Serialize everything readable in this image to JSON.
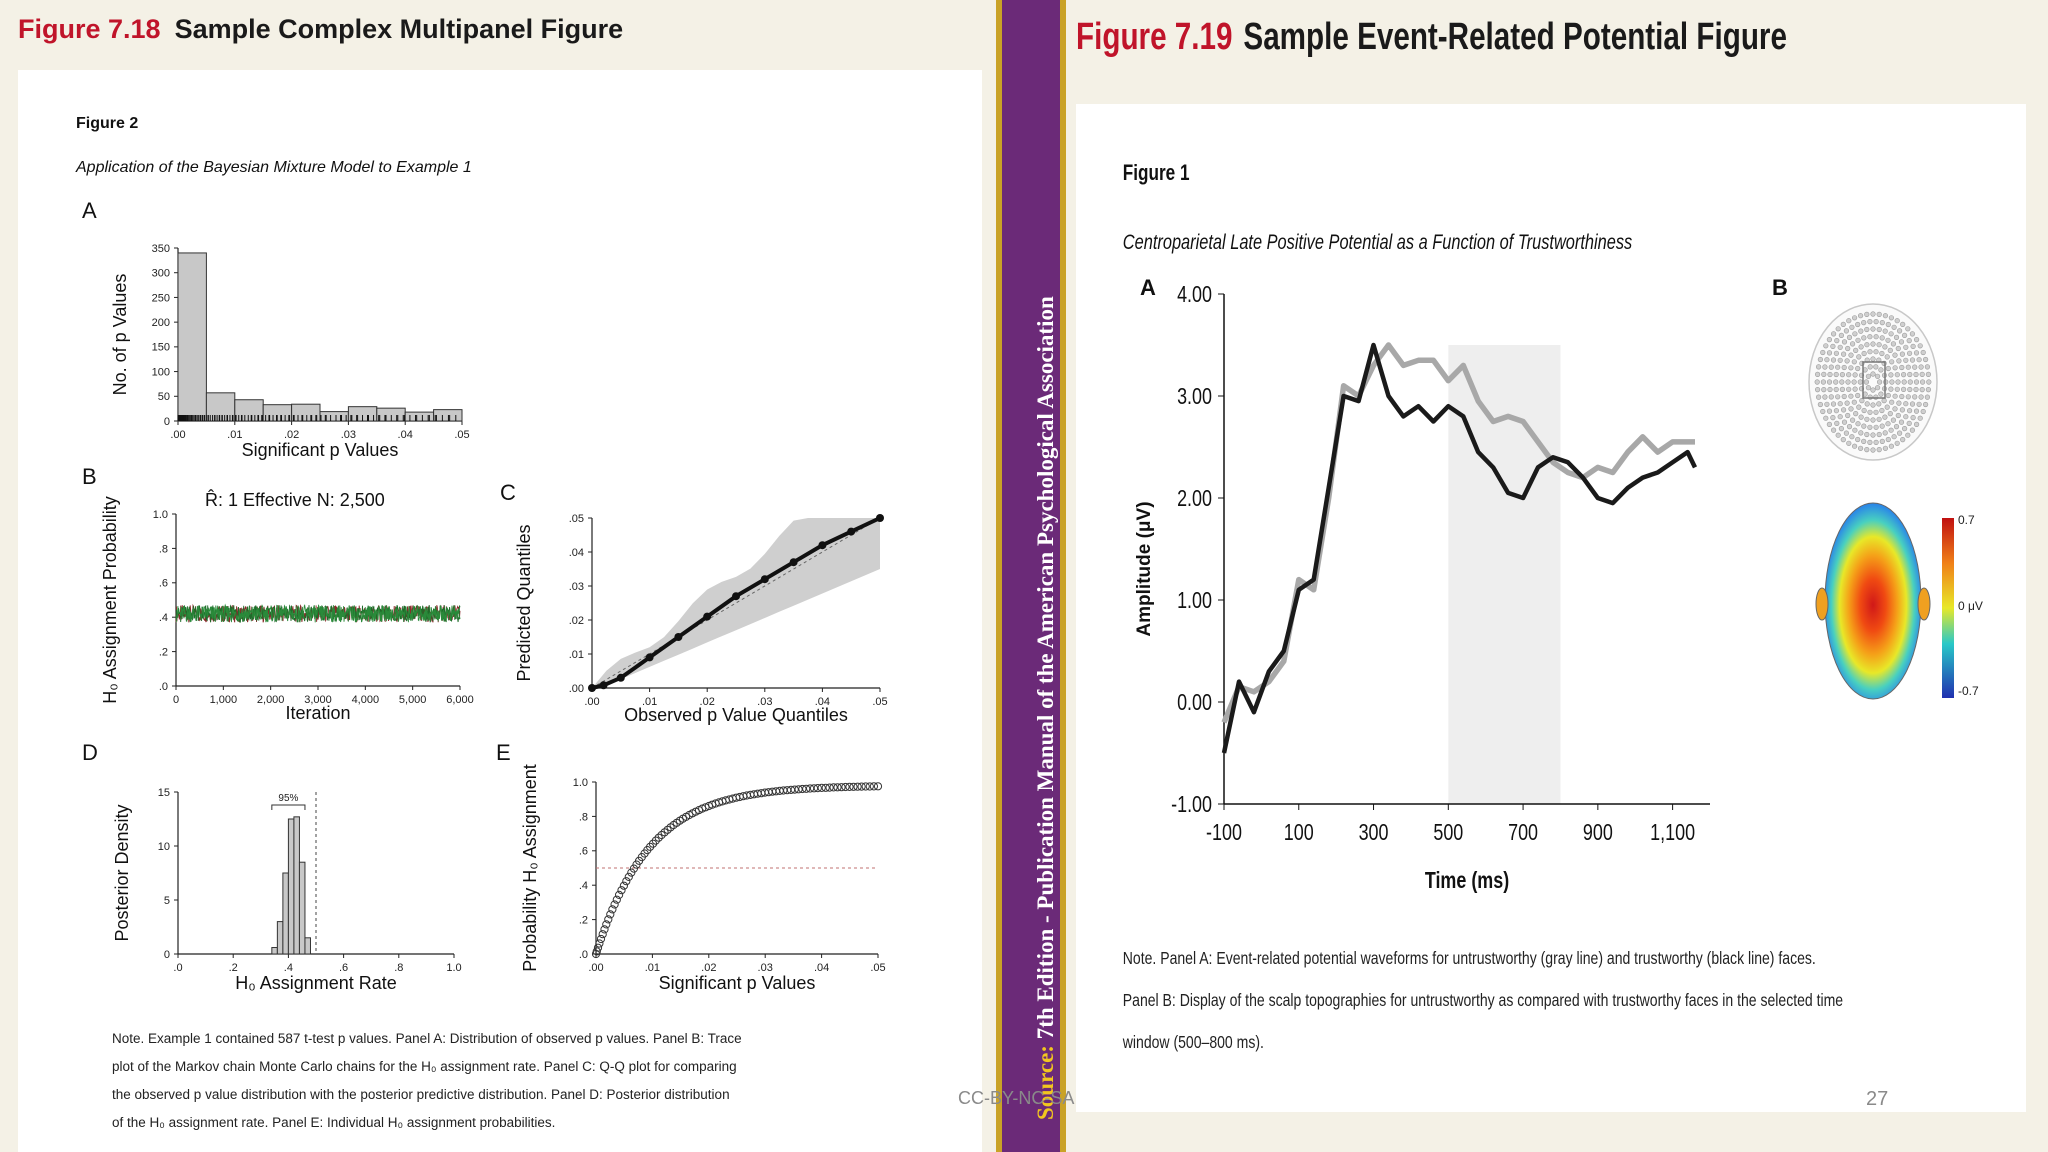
{
  "left_figure": {
    "label": "Figure 7.18",
    "title": "Sample Complex Multipanel Figure",
    "figure_number": "Figure 2",
    "figure_title": "Application of the Bayesian Mixture Model to Example 1",
    "panel_letters": [
      "A",
      "B",
      "C",
      "D",
      "E"
    ],
    "panel_B_header": "R̂: 1    Effective N: 2,500",
    "panel_D_ci_label": "95%",
    "note_lines": [
      "Note. Example 1 contained 587 t-test p values. Panel A: Distribution of observed p values. Panel B: Trace",
      "plot of the Markov chain Monte Carlo chains for the H₀ assignment rate. Panel C: Q-Q plot for comparing",
      "the observed p value distribution with the posterior predictive distribution. Panel D: Posterior distribution",
      "of the H₀ assignment rate. Panel E: Individual H₀ assignment probabilities."
    ]
  },
  "right_figure": {
    "label": "Figure 7.19",
    "title": "Sample Event-Related Potential Figure",
    "figure_number": "Figure 1",
    "figure_title": "Centroparietal Late Positive Potential as a Function of Trustworthiness",
    "panel_letters": [
      "A",
      "B"
    ],
    "colorbar_labels": [
      "0.7",
      "0 μV",
      "-0.7"
    ],
    "note_lines": [
      "Note. Panel A: Event-related potential waveforms for untrustworthy (gray line) and trustworthy (black line) faces.",
      "Panel B: Display of the scalp topographies for untrustworthy as compared with trustworthy faces in the selected time",
      "window (500–800 ms)."
    ]
  },
  "banner": {
    "source_label": "Source:",
    "text": "7th Edition - Publication Manual of the American Psychological Association"
  },
  "footer": {
    "license": "CC-BY-NC-SA",
    "page": "27"
  },
  "colors": {
    "accent_red": "#c0142a",
    "banner_purple": "#6b2a78",
    "banner_gold": "#c9a227"
  },
  "chart_data": [
    {
      "id": "A",
      "type": "bar",
      "xlabel": "Significant p Values",
      "ylabel": "No. of p Values",
      "xlim": [
        0,
        0.05
      ],
      "ylim": [
        0,
        350
      ],
      "xticks": [
        ".00",
        ".01",
        ".02",
        ".03",
        ".04",
        ".05"
      ],
      "yticks": [
        "0",
        "50",
        "100",
        "150",
        "200",
        "250",
        "300",
        "350"
      ],
      "bin_width": 0.005,
      "values": [
        340,
        57,
        43,
        33,
        34,
        19,
        29,
        26,
        18,
        23
      ]
    },
    {
      "id": "B",
      "type": "line",
      "xlabel": "Iteration",
      "ylabel": "H₀ Assignment Probability",
      "xlim": [
        0,
        6000
      ],
      "ylim": [
        0,
        1
      ],
      "xticks": [
        "0",
        "1,000",
        "2,000",
        "3,000",
        "4,000",
        "5,000",
        "6,000"
      ],
      "yticks": [
        ".0",
        ".2",
        ".4",
        ".6",
        ".8",
        "1.0"
      ],
      "series": [
        {
          "name": "chains",
          "mean": 0.42,
          "spread": 0.05
        }
      ]
    },
    {
      "id": "C",
      "type": "scatter",
      "xlabel": "Observed p Value Quantiles",
      "ylabel": "Predicted Quantiles",
      "xlim": [
        0,
        0.05
      ],
      "ylim": [
        0,
        0.05
      ],
      "xticks": [
        ".00",
        ".01",
        ".02",
        ".03",
        ".04",
        ".05"
      ],
      "yticks": [
        ".00",
        ".01",
        ".02",
        ".03",
        ".04",
        ".05"
      ],
      "x": [
        0.0,
        0.002,
        0.005,
        0.01,
        0.015,
        0.02,
        0.025,
        0.03,
        0.035,
        0.04,
        0.045,
        0.05
      ],
      "y": [
        0.0,
        0.0008,
        0.003,
        0.009,
        0.015,
        0.021,
        0.027,
        0.032,
        0.037,
        0.042,
        0.046,
        0.05
      ]
    },
    {
      "id": "D",
      "type": "bar",
      "xlabel": "H₀ Assignment Rate",
      "ylabel": "Posterior Density",
      "xlim": [
        0,
        1
      ],
      "ylim": [
        0,
        15
      ],
      "xticks": [
        ".0",
        ".2",
        ".4",
        ".6",
        ".8",
        "1.0"
      ],
      "yticks": [
        "0",
        "5",
        "10",
        "15"
      ],
      "bin_width": 0.02,
      "bins": [
        0.34,
        0.36,
        0.38,
        0.4,
        0.42,
        0.44,
        0.46
      ],
      "values": [
        0.6,
        3,
        7.5,
        12.5,
        12.7,
        8.5,
        1.5
      ],
      "ci95": [
        0.34,
        0.46
      ],
      "cutoff": 0.5
    },
    {
      "id": "E",
      "type": "scatter",
      "xlabel": "Significant p Values",
      "ylabel": "Probability H₀ Assignment",
      "xlim": [
        0,
        0.05
      ],
      "ylim": [
        0,
        1
      ],
      "xticks": [
        ".00",
        ".01",
        ".02",
        ".03",
        ".04",
        ".05"
      ],
      "yticks": [
        ".0",
        ".2",
        ".4",
        ".6",
        ".8",
        "1.0"
      ],
      "reference_y": 0.5
    },
    {
      "id": "ERP",
      "type": "line",
      "xlabel": "Time (ms)",
      "ylabel": "Amplitude (μV)",
      "xlim": [
        -100,
        1200
      ],
      "ylim": [
        -1,
        4
      ],
      "xticks": [
        "-100",
        "100",
        "300",
        "500",
        "700",
        "900",
        "1,100"
      ],
      "yticks": [
        "-1.00",
        "0.00",
        "1.00",
        "2.00",
        "3.00",
        "4.00"
      ],
      "shaded_window": [
        500,
        800
      ],
      "series": [
        {
          "name": "untrustworthy (gray line)",
          "color": "#a8a8a8",
          "x": [
            -100,
            -60,
            -20,
            20,
            60,
            100,
            140,
            180,
            220,
            260,
            300,
            340,
            380,
            420,
            460,
            500,
            540,
            580,
            620,
            660,
            700,
            740,
            780,
            820,
            860,
            900,
            940,
            980,
            1020,
            1060,
            1100,
            1140,
            1160
          ],
          "y": [
            -0.2,
            0.15,
            0.1,
            0.2,
            0.4,
            1.2,
            1.1,
            2.0,
            3.1,
            3.0,
            3.3,
            3.5,
            3.3,
            3.35,
            3.35,
            3.15,
            3.3,
            2.95,
            2.75,
            2.8,
            2.75,
            2.55,
            2.35,
            2.25,
            2.2,
            2.3,
            2.25,
            2.45,
            2.6,
            2.45,
            2.55,
            2.55,
            2.55
          ]
        },
        {
          "name": "trustworthy (black line)",
          "color": "#1a1a1a",
          "x": [
            -100,
            -60,
            -20,
            20,
            60,
            100,
            140,
            180,
            220,
            260,
            300,
            340,
            380,
            420,
            460,
            500,
            540,
            580,
            620,
            660,
            700,
            740,
            780,
            820,
            860,
            900,
            940,
            980,
            1020,
            1060,
            1100,
            1140,
            1160
          ],
          "y": [
            -0.5,
            0.2,
            -0.1,
            0.3,
            0.5,
            1.1,
            1.2,
            2.1,
            3.0,
            2.95,
            3.5,
            3.0,
            2.8,
            2.9,
            2.75,
            2.9,
            2.8,
            2.45,
            2.3,
            2.05,
            2.0,
            2.3,
            2.4,
            2.35,
            2.2,
            2.0,
            1.95,
            2.1,
            2.2,
            2.25,
            2.35,
            2.45,
            2.3
          ]
        }
      ]
    }
  ]
}
